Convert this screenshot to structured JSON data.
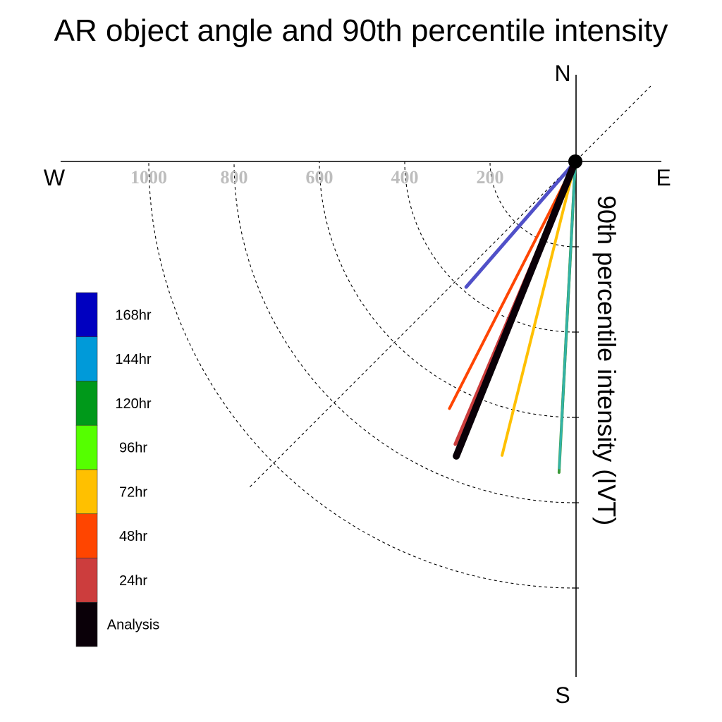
{
  "chart_data": {
    "type": "polar-vector",
    "title": "AR object angle and 90th percentile intensity",
    "radial_label": "90th percentile intensity (IVT)",
    "compass": {
      "north": "N",
      "south": "S",
      "east": "E",
      "west": "W"
    },
    "radial_ticks": [
      200,
      400,
      600,
      800,
      1000
    ],
    "radial_tick_labels": [
      "200",
      "400",
      "600",
      "800",
      "1000"
    ],
    "max_radius": 1200,
    "angle_convention": "degrees clockwise from north",
    "series": [
      {
        "name": "168hr",
        "angle": 221,
        "intensity": 390,
        "color": "#5050c8",
        "width": 5
      },
      {
        "name": "144hr",
        "angle": 183,
        "intensity": 610,
        "color": "#009ad9",
        "width": 4
      },
      {
        "name": "120hr",
        "angle": 183,
        "intensity": 730,
        "color": "#3a9a3a",
        "width": 4
      },
      {
        "name": "96hr",
        "angle": 183,
        "intensity": 720,
        "color": "#33b3aa",
        "width": 3
      },
      {
        "name": "72hr",
        "angle": 194,
        "intensity": 710,
        "color": "#ffc000",
        "width": 4
      },
      {
        "name": "48hr",
        "angle": 207,
        "intensity": 650,
        "color": "#ff4500",
        "width": 4
      },
      {
        "name": "24hr",
        "angle": 203,
        "intensity": 720,
        "color": "#cc3d3d",
        "width": 5
      },
      {
        "name": "Analysis",
        "angle": 202,
        "intensity": 745,
        "color": "#0a0008",
        "width": 10
      }
    ],
    "legend": [
      {
        "label": "168hr",
        "color": "#0000c0"
      },
      {
        "label": "144hr",
        "color": "#009ad9"
      },
      {
        "label": "120hr",
        "color": "#00991a"
      },
      {
        "label": "96hr",
        "color": "#55ff00"
      },
      {
        "label": "72hr",
        "color": "#ffc000"
      },
      {
        "label": "48hr",
        "color": "#ff4500"
      },
      {
        "label": "24hr",
        "color": "#cc3d3d"
      },
      {
        "label": "Analysis",
        "color": "#0a0008"
      }
    ]
  }
}
